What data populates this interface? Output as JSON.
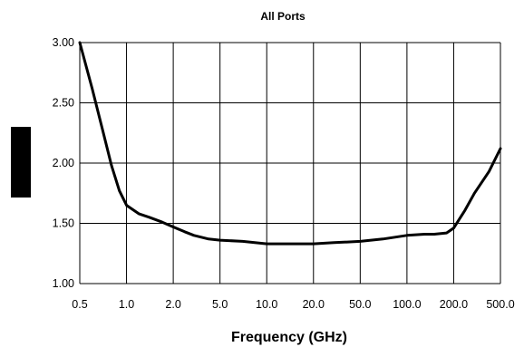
{
  "chart_data": {
    "type": "line",
    "title": "All Ports",
    "xlabel": "Frequency (GHz)",
    "ylabel": "",
    "x_categories": [
      "0.5",
      "1.0",
      "2.0",
      "5.0",
      "10.0",
      "20.0",
      "50.0",
      "100.0",
      "200.0",
      "500.0"
    ],
    "y_ticks": [
      "1.00",
      "1.50",
      "2.00",
      "2.50",
      "3.00"
    ],
    "ylim": [
      1.0,
      3.0
    ],
    "grid": true,
    "legend": "none",
    "series": [
      {
        "x": [
          0.5,
          0.6,
          0.7,
          0.8,
          0.9,
          1.0,
          1.2,
          1.4,
          1.7,
          2.0,
          2.5,
          3.0,
          4.0,
          5.0,
          7.0,
          10.0,
          15.0,
          20.0,
          30.0,
          50.0,
          70.0,
          100.0,
          130.0,
          150.0,
          180.0,
          200.0,
          250.0,
          300.0,
          400.0,
          500.0
        ],
        "y": [
          3.0,
          2.62,
          2.28,
          1.98,
          1.77,
          1.65,
          1.58,
          1.55,
          1.51,
          1.47,
          1.43,
          1.4,
          1.37,
          1.36,
          1.35,
          1.33,
          1.33,
          1.33,
          1.34,
          1.35,
          1.37,
          1.4,
          1.41,
          1.41,
          1.42,
          1.46,
          1.61,
          1.75,
          1.93,
          2.12
        ]
      }
    ]
  },
  "side_marker_color": "#000000"
}
